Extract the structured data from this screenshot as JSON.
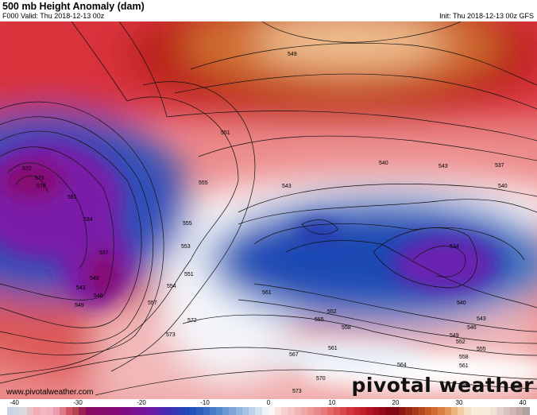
{
  "header": {
    "title": "500 mb Height Anomaly (dam)",
    "valid": "F000 Valid: Thu 2018-12-13 00z",
    "init": "Init: Thu 2018-12-13 00z GFS"
  },
  "map": {
    "contour_labels": [
      "550",
      "549",
      "551",
      "555",
      "572",
      "575",
      "578",
      "581",
      "534",
      "537",
      "540",
      "543",
      "546",
      "549",
      "561",
      "555",
      "553",
      "551",
      "554",
      "557",
      "572",
      "573",
      "543",
      "540",
      "537",
      "540",
      "543",
      "534",
      "540",
      "543",
      "546",
      "549",
      "552",
      "555",
      "558",
      "561",
      "564",
      "552",
      "555",
      "558",
      "561",
      "567",
      "570",
      "573"
    ]
  },
  "watermark": {
    "site": "www.pivotalweather.com",
    "brand": "pivotal weather"
  },
  "colorbar": {
    "min": -40,
    "max": 40,
    "tick_labels": [
      "-40",
      "-30",
      "-20",
      "-10",
      "0",
      "10",
      "20",
      "30",
      "40"
    ],
    "stops": [
      [
        -40,
        "#c4d2e6"
      ],
      [
        -38,
        "#d6dae2"
      ],
      [
        -37,
        "#dcdcdc"
      ],
      [
        -36,
        "#f0a8b0"
      ],
      [
        -34,
        "#f4bcc4"
      ],
      [
        -32,
        "#e890a8"
      ],
      [
        -31,
        "#d86070"
      ],
      [
        -30,
        "#c04858"
      ],
      [
        -29,
        "#a83c48"
      ],
      [
        -28,
        "#8c0a5c"
      ],
      [
        -22,
        "#800c80"
      ],
      [
        -18,
        "#7018a8"
      ],
      [
        -15,
        "#3c30b4"
      ],
      [
        -12,
        "#1c4cb8"
      ],
      [
        -8,
        "#4a80c8"
      ],
      [
        -4,
        "#9cbce0"
      ],
      [
        -1,
        "#dce8f4"
      ],
      [
        0,
        "#ffffff"
      ],
      [
        2,
        "#f8d8d8"
      ],
      [
        6,
        "#eea0a0"
      ],
      [
        10,
        "#e06060"
      ],
      [
        13,
        "#d02c34"
      ],
      [
        16,
        "#b01020"
      ],
      [
        19,
        "#7c0010"
      ],
      [
        21,
        "#902010"
      ],
      [
        24,
        "#c05020"
      ],
      [
        27,
        "#e08848"
      ],
      [
        29,
        "#f0c090"
      ],
      [
        31,
        "#f8ecd4"
      ],
      [
        34,
        "#f4ecdc"
      ],
      [
        36,
        "#e0c8c8"
      ],
      [
        38,
        "#c8b0b0"
      ],
      [
        40,
        "#a89c9c"
      ]
    ]
  }
}
